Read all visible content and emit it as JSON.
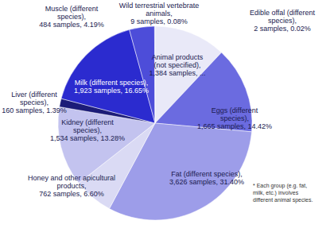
{
  "chart_data": {
    "type": "pie",
    "categories": [
      "Animal products (not specified),",
      "Edible offal (different species),",
      "Eggs (different species),",
      "Fat (different species),",
      "Honey and other apicultural products,",
      "Kidney (different species),",
      "Liver (different species),",
      "Milk (different species),",
      "Muscle (different species),",
      "Wild terrestrial vertebrate animals,"
    ],
    "values": [
      1384,
      2,
      1665,
      3626,
      762,
      1534,
      160,
      1923,
      484,
      9
    ],
    "value_labels": [
      "1,384 samples, ...",
      "2 samples, 0.02%",
      "1,665 samples, 14.42%",
      "3,626 samples, 31.40%",
      "762 samples, 6.60%",
      "1,534 samples, 13.28%",
      "160 samples, 1.39%",
      "1,923 samples, 16.65%",
      "484 samples, 4.19%",
      "9 samples, 0.08%"
    ],
    "percents": [
      null,
      0.02,
      14.42,
      31.4,
      6.6,
      13.28,
      1.39,
      16.65,
      4.19,
      0.08
    ],
    "colors": [
      "#e9e9f8",
      "#b8b8ee",
      "#6b6be0",
      "#9d9de9",
      "#dadaf4",
      "#c3c3ef",
      "#1c1c78",
      "#2b2bcf",
      "#4d4dd9",
      "#8080e0"
    ],
    "annotation": "* Each group (e.g. fat, milk, etc.) involves different animal species.",
    "data_labels": true
  }
}
